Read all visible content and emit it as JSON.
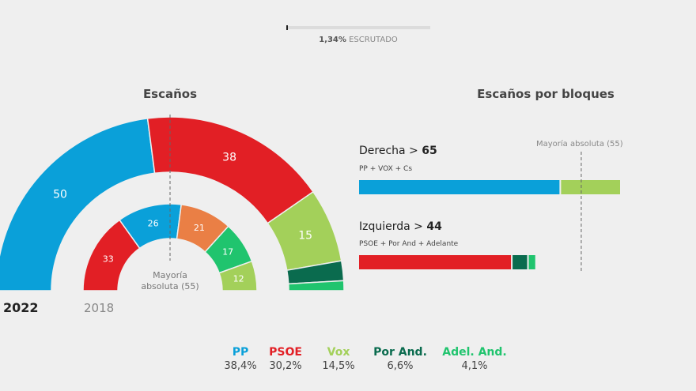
{
  "progress": {
    "percent": 1.34,
    "value_label": "1,34%",
    "label": "ESCRUTADO"
  },
  "colors": {
    "PP": "#0aa0d9",
    "PSOE": "#e21f25",
    "Vox": "#a3d05a",
    "Por And.": "#0a6b4e",
    "Adel. And.": "#20c46e",
    "Cs": "#ea7f45"
  },
  "chart_data": [
    {
      "type": "pie",
      "title": "Escaños",
      "variant": "half-donut",
      "series": [
        {
          "name": "2022",
          "slices": [
            {
              "party": "PP",
              "seats": 50,
              "label": "50"
            },
            {
              "party": "PSOE",
              "seats": 38,
              "label": "38"
            },
            {
              "party": "Vox",
              "seats": 15,
              "label": "15"
            },
            {
              "party": "Por And.",
              "seats": 4,
              "label": ""
            },
            {
              "party": "Adel. And.",
              "seats": 2,
              "label": ""
            }
          ]
        },
        {
          "name": "2018",
          "slices": [
            {
              "party": "PSOE",
              "seats": 33,
              "label": "33"
            },
            {
              "party": "PP",
              "seats": 26,
              "label": "26"
            },
            {
              "party": "Cs",
              "seats": 21,
              "label": "21"
            },
            {
              "party": "Adel. And.",
              "seats": 17,
              "label": "17"
            },
            {
              "party": "Vox",
              "seats": 12,
              "label": "12"
            }
          ]
        }
      ],
      "total_seats": 109,
      "majority": 55,
      "majority_label": [
        "Mayoría",
        "absoluta (55)"
      ]
    },
    {
      "type": "bar",
      "orientation": "horizontal-stacked",
      "title": "Escaños por bloques",
      "majority": 55,
      "majority_label": "Mayoría absoluta (55)",
      "blocs": [
        {
          "name": "Derecha",
          "total": 65,
          "parties_label": "PP + VOX + Cs",
          "segments": [
            {
              "party": "PP",
              "seats": 50
            },
            {
              "party": "Vox",
              "seats": 15
            }
          ]
        },
        {
          "name": "Izquierda",
          "total": 44,
          "parties_label": "PSOE + Por And + Adelante",
          "segments": [
            {
              "party": "PSOE",
              "seats": 38
            },
            {
              "party": "Por And.",
              "seats": 4
            },
            {
              "party": "Adel. And.",
              "seats": 2
            }
          ]
        }
      ]
    }
  ],
  "legend": [
    {
      "party": "PP",
      "pct": "38,4%"
    },
    {
      "party": "PSOE",
      "pct": "30,2%"
    },
    {
      "party": "Vox",
      "pct": "14,5%"
    },
    {
      "party": "Por And.",
      "pct": "6,6%"
    },
    {
      "party": "Adel. And.",
      "pct": "4,1%"
    }
  ]
}
